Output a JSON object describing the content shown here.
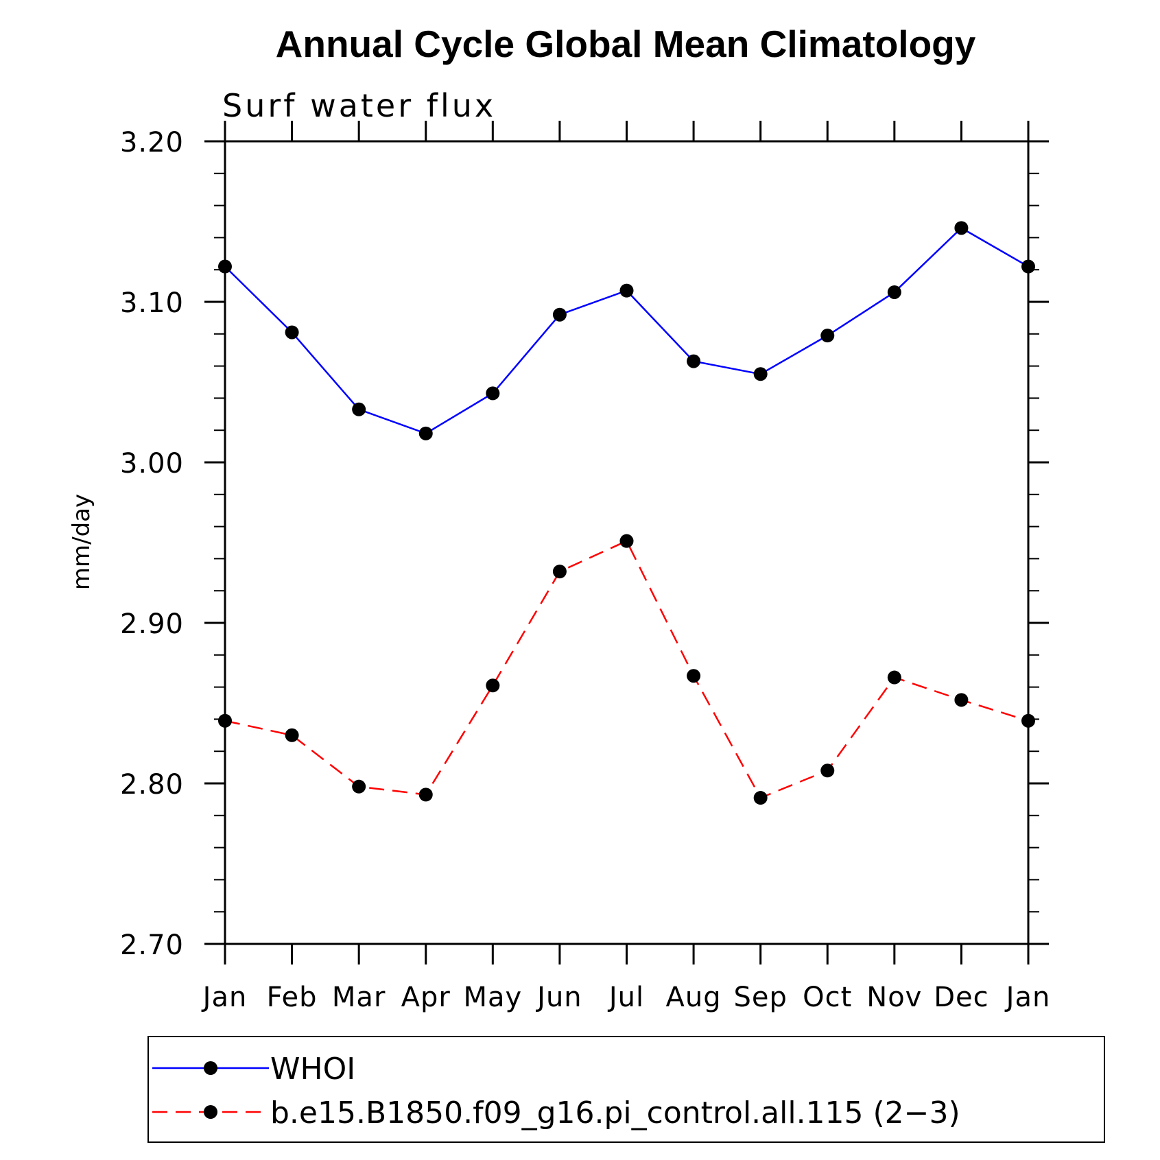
{
  "chart_data": {
    "type": "line",
    "title": "Annual Cycle Global Mean Climatology",
    "subtitle": "Surf water flux",
    "ylabel": "mm/day",
    "xlabel": "",
    "categories": [
      "Jan",
      "Feb",
      "Mar",
      "Apr",
      "May",
      "Jun",
      "Jul",
      "Aug",
      "Sep",
      "Oct",
      "Nov",
      "Dec",
      "Jan"
    ],
    "ylim": [
      2.7,
      3.2
    ],
    "yticks": [
      "2.70",
      "2.80",
      "2.90",
      "3.00",
      "3.10",
      "3.20"
    ],
    "grid": false,
    "legend_position": "bottom",
    "series": [
      {
        "name": "WHOI",
        "color": "#0000ff",
        "line_style": "solid",
        "marker": "filled-circle",
        "values": [
          3.122,
          3.081,
          3.033,
          3.018,
          3.043,
          3.092,
          3.107,
          3.063,
          3.055,
          3.079,
          3.106,
          3.146,
          3.122
        ]
      },
      {
        "name": "b.e15.B1850.f09_g16.pi_control.all.115 (2−3)",
        "color": "#ff0000",
        "line_style": "dashed",
        "marker": "filled-circle",
        "values": [
          2.839,
          2.83,
          2.798,
          2.793,
          2.861,
          2.932,
          2.951,
          2.867,
          2.791,
          2.808,
          2.866,
          2.852,
          2.839
        ]
      }
    ]
  }
}
